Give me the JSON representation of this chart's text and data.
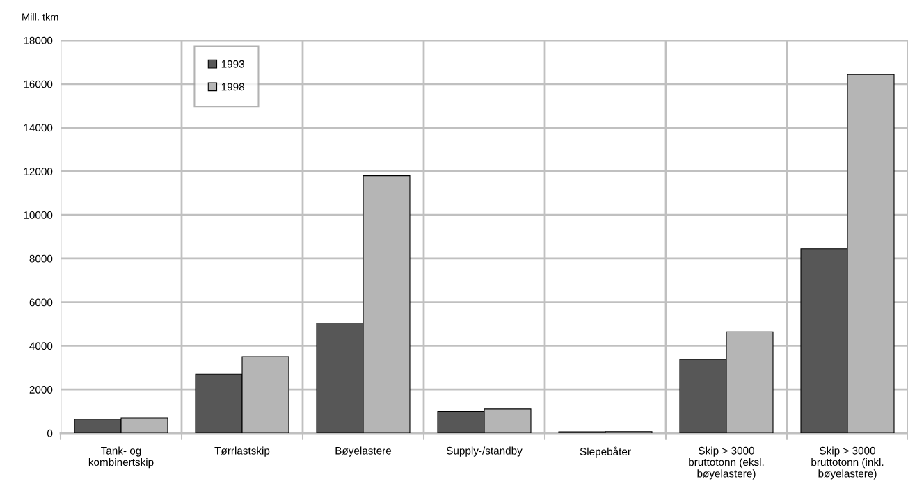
{
  "chart_data": {
    "type": "bar",
    "ylabel": "Mill. tkm",
    "categories": [
      "Tank- og\nkombinertskip",
      "Tørrlastskip",
      "Bøyelastere",
      "Supply-/standby",
      "Slepebåter",
      "Skip > 3000\nbruttotonn (eksl.\nbøyelastere)",
      "Skip > 3000\nbruttotonn (inkl.\nbøyelastere)"
    ],
    "series": [
      {
        "name": "1993",
        "color": "#575757",
        "values": [
          650,
          2700,
          5050,
          1000,
          60,
          3380,
          8450
        ]
      },
      {
        "name": "1998",
        "color": "#b5b5b5",
        "values": [
          700,
          3500,
          11800,
          1120,
          70,
          4640,
          16430
        ]
      }
    ],
    "ylim": [
      0,
      18000
    ],
    "yticks": [
      0,
      2000,
      4000,
      6000,
      8000,
      10000,
      12000,
      14000,
      16000,
      18000
    ],
    "grid": true,
    "legend": "top left"
  }
}
